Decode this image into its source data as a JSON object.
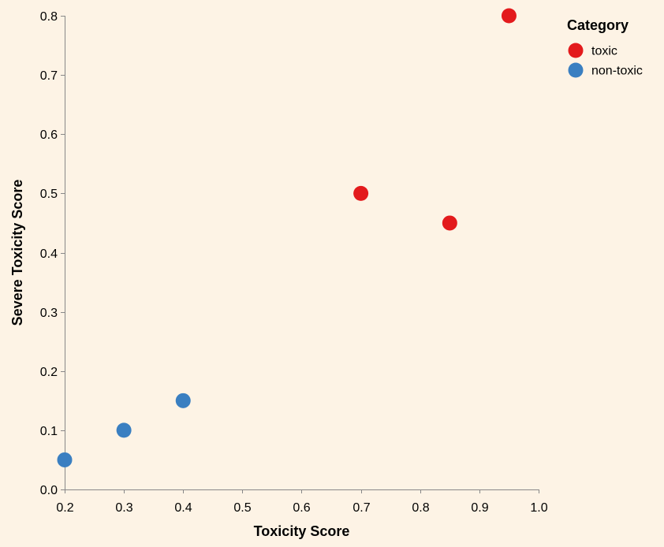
{
  "chart_data": {
    "type": "scatter",
    "title": "",
    "xlabel": "Toxicity Score",
    "ylabel": "Severe Toxicity Score",
    "xlim": [
      0.2,
      1.0
    ],
    "ylim": [
      0.0,
      0.8
    ],
    "x_ticks": [
      "0.2",
      "0.3",
      "0.4",
      "0.5",
      "0.6",
      "0.7",
      "0.8",
      "0.9",
      "1.0"
    ],
    "y_ticks": [
      "0.0",
      "0.1",
      "0.2",
      "0.3",
      "0.4",
      "0.5",
      "0.6",
      "0.7",
      "0.8"
    ],
    "grid": false,
    "legend": {
      "title": "Category",
      "position": "top-right",
      "entries": [
        {
          "name": "toxic",
          "color": "#e31a1c"
        },
        {
          "name": "non-toxic",
          "color": "#3a7fc1"
        }
      ]
    },
    "series": [
      {
        "name": "toxic",
        "color": "#e31a1c",
        "points": [
          {
            "x": 0.95,
            "y": 0.8
          },
          {
            "x": 0.7,
            "y": 0.5
          },
          {
            "x": 0.85,
            "y": 0.45
          }
        ]
      },
      {
        "name": "non-toxic",
        "color": "#3a7fc1",
        "points": [
          {
            "x": 0.4,
            "y": 0.15
          },
          {
            "x": 0.3,
            "y": 0.1
          },
          {
            "x": 0.2,
            "y": 0.05
          }
        ]
      }
    ]
  }
}
